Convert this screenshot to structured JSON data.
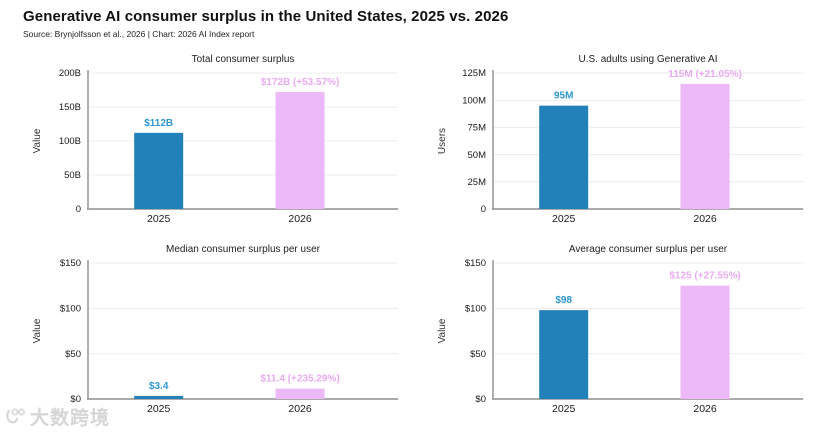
{
  "page": {
    "title": "Generative AI consumer surplus in the United States, 2025 vs. 2026",
    "source": "Source: Brynjolfsson et al., 2026 | Chart: 2026 AI Index report"
  },
  "watermark": {
    "text": "大数跨境",
    "icon": "watermark-logo-icon"
  },
  "colors": {
    "bar_2025": "#2381b9",
    "bar_2026": "#ecb8f7",
    "label_2025": "#2d97d3",
    "label_2026": "#eaaaf2",
    "axis": "#8f8f8f",
    "grid": "#ececec",
    "tick_text": "#1a1a1a",
    "axis_label_text": "#333333",
    "chart_title_text": "#222222"
  },
  "chart_data": [
    {
      "type": "bar",
      "title": "Total consumer surplus",
      "xlabel": "",
      "ylabel": "Value",
      "categories": [
        "2025",
        "2026"
      ],
      "values": [
        112,
        172
      ],
      "bar_labels": [
        "$112B",
        "$172B (+53.57%)"
      ],
      "ylim": [
        0,
        200
      ],
      "yticks": [
        0,
        50,
        100,
        150,
        200
      ],
      "ytick_labels": [
        "0",
        "50B",
        "100B",
        "150B",
        "200B"
      ],
      "grid": true,
      "legend": "none"
    },
    {
      "type": "bar",
      "title": "U.S. adults using Generative AI",
      "xlabel": "",
      "ylabel": "Users",
      "categories": [
        "2025",
        "2026"
      ],
      "values": [
        95,
        115
      ],
      "bar_labels": [
        "95M",
        "115M (+21.05%)"
      ],
      "ylim": [
        0,
        125
      ],
      "yticks": [
        0,
        25,
        50,
        75,
        100,
        125
      ],
      "ytick_labels": [
        "0",
        "25M",
        "50M",
        "75M",
        "100M",
        "125M"
      ],
      "grid": true,
      "legend": "none"
    },
    {
      "type": "bar",
      "title": "Median consumer surplus per user",
      "xlabel": "",
      "ylabel": "Value",
      "categories": [
        "2025",
        "2026"
      ],
      "values": [
        3.4,
        11.4
      ],
      "bar_labels": [
        "$3.4",
        "$11.4 (+235.29%)"
      ],
      "ylim": [
        0,
        150
      ],
      "yticks": [
        0,
        50,
        100,
        150
      ],
      "ytick_labels": [
        "$0",
        "$50",
        "$100",
        "$150"
      ],
      "grid": true,
      "legend": "none"
    },
    {
      "type": "bar",
      "title": "Average consumer surplus per user",
      "xlabel": "",
      "ylabel": "Value",
      "categories": [
        "2025",
        "2026"
      ],
      "values": [
        98,
        125
      ],
      "bar_labels": [
        "$98",
        "$125 (+27.55%)"
      ],
      "ylim": [
        0,
        150
      ],
      "yticks": [
        0,
        50,
        100,
        150
      ],
      "ytick_labels": [
        "$0",
        "$50",
        "$100",
        "$150"
      ],
      "grid": true,
      "legend": "none"
    }
  ]
}
